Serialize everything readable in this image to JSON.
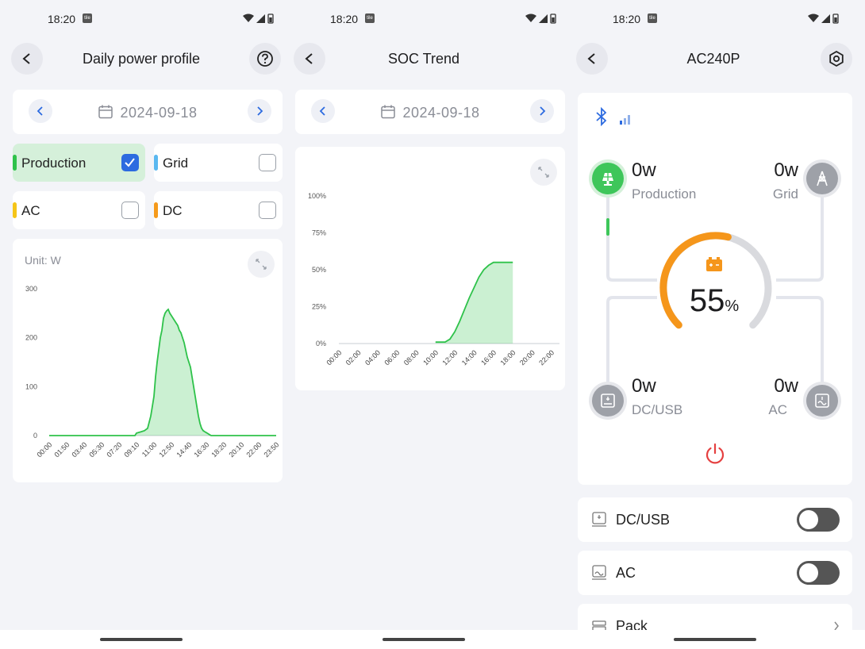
{
  "status_bar": {
    "time": "18:20",
    "badge": "tile"
  },
  "screen1": {
    "title": "Daily power profile",
    "date": "2024-09-18",
    "filters": [
      {
        "label": "Production",
        "color": "#2ec24a",
        "checked": true
      },
      {
        "label": "Grid",
        "color": "#5ab8f0",
        "checked": false
      },
      {
        "label": "AC",
        "color": "#f5c518",
        "checked": false
      },
      {
        "label": "DC",
        "color": "#f59a1b",
        "checked": false
      }
    ],
    "unit": "Unit: W"
  },
  "screen2": {
    "title": "SOC Trend",
    "date": "2024-09-18"
  },
  "screen3": {
    "title": "AC240P",
    "production_value": "0w",
    "production_label": "Production",
    "grid_value": "0w",
    "grid_label": "Grid",
    "dcusb_value": "0w",
    "dcusb_label": "DC/USB",
    "ac_value": "0w",
    "ac_label": "AC",
    "soc_value": "55",
    "soc_unit": "%",
    "soc_fraction": 0.55,
    "toggles": [
      {
        "label": "DC/USB",
        "on": false
      },
      {
        "label": "AC",
        "on": false
      }
    ],
    "pack_label": "Pack",
    "accent_orange": "#f5961b",
    "accent_green": "#3ec65a",
    "power_red": "#e54040"
  },
  "chart_data": [
    {
      "type": "area",
      "title": "",
      "unit_label": "Unit: W",
      "ylim": [
        0,
        300
      ],
      "y_ticks": [
        "0",
        "100",
        "200",
        "300"
      ],
      "x_ticks": [
        "00:00",
        "01:50",
        "03:40",
        "05:30",
        "07:20",
        "09:10",
        "11:00",
        "12:50",
        "14:40",
        "16:30",
        "18:20",
        "20:10",
        "22:00",
        "23:50"
      ],
      "series": [
        {
          "name": "Production",
          "color": "#2ec24a",
          "x": [
            "00:00",
            "09:00",
            "09:10",
            "09:40",
            "10:00",
            "10:20",
            "10:40",
            "11:00",
            "11:10",
            "11:20",
            "11:30",
            "11:40",
            "11:50",
            "12:00",
            "12:10",
            "12:20",
            "12:30",
            "12:40",
            "12:50",
            "13:00",
            "13:10",
            "13:20",
            "13:30",
            "13:40",
            "13:50",
            "14:00",
            "14:10",
            "14:20",
            "14:30",
            "14:40",
            "14:50",
            "15:00",
            "15:10",
            "15:20",
            "15:30",
            "15:40",
            "15:50",
            "16:00",
            "16:10",
            "16:20",
            "16:30",
            "16:40",
            "16:50",
            "17:00",
            "17:20",
            "23:50"
          ],
          "values": [
            0,
            0,
            5,
            8,
            10,
            15,
            40,
            80,
            120,
            150,
            175,
            200,
            215,
            240,
            250,
            255,
            258,
            250,
            245,
            240,
            235,
            230,
            225,
            215,
            210,
            200,
            190,
            175,
            160,
            150,
            140,
            120,
            100,
            80,
            60,
            40,
            25,
            15,
            10,
            8,
            6,
            4,
            2,
            0,
            0,
            0
          ]
        }
      ]
    },
    {
      "type": "area",
      "title": "",
      "ylim": [
        0,
        100
      ],
      "y_ticks": [
        "0%",
        "25%",
        "50%",
        "75%",
        "100%"
      ],
      "x_ticks": [
        "00:00",
        "02:00",
        "04:00",
        "06:00",
        "08:00",
        "10:00",
        "12:00",
        "14:00",
        "16:00",
        "18:00",
        "20:00",
        "22:00"
      ],
      "series": [
        {
          "name": "SOC",
          "color": "#2ec24a",
          "x": [
            "10:00",
            "11:00",
            "11:30",
            "12:00",
            "12:30",
            "13:00",
            "13:30",
            "14:00",
            "14:30",
            "15:00",
            "15:30",
            "16:00",
            "17:00",
            "18:00"
          ],
          "values": [
            1,
            1,
            3,
            8,
            15,
            23,
            31,
            38,
            45,
            50,
            53,
            55,
            55,
            55
          ]
        }
      ]
    }
  ]
}
